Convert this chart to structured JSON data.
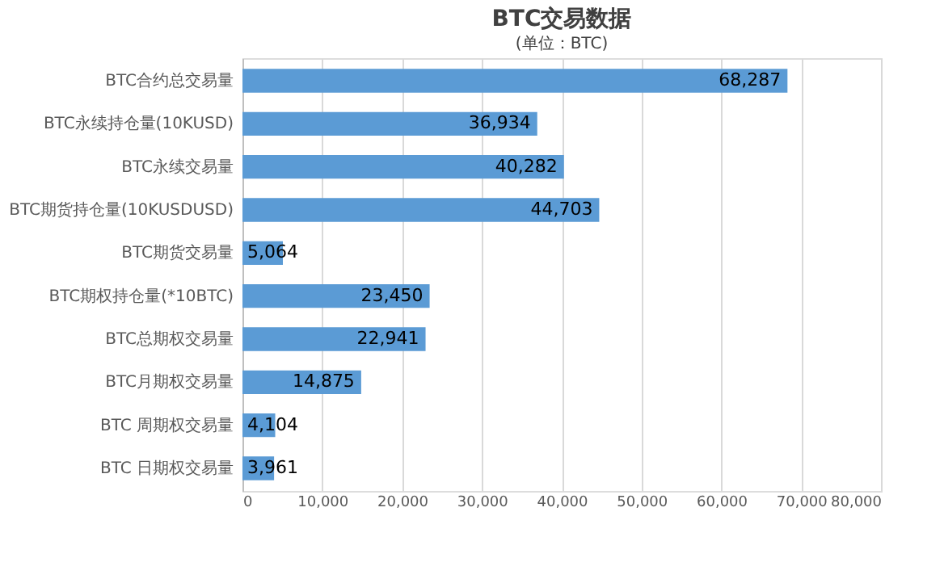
{
  "chart_data": {
    "type": "bar",
    "orientation": "horizontal",
    "title": "BTC交易数据",
    "subtitle": "(单位：BTC)",
    "categories": [
      "BTC合约总交易量",
      "BTC永续持仓量(10KUSD)",
      "BTC永续交易量",
      "BTC期货持仓量(10KUSDUSD)",
      "BTC期货交易量",
      "BTC期权持仓量(*10BTC)",
      "BTC总期权交易量",
      "BTC月期权交易量",
      "BTC  周期权交易量",
      "BTC  日期权交易量"
    ],
    "series": [
      {
        "color": "#5b9bd5",
        "values": [
          68287,
          36934,
          40282,
          44703,
          5064,
          23450,
          22941,
          14875,
          4104,
          3961
        ],
        "value_labels": [
          "68,287",
          "36,934",
          "40,282",
          "44,703",
          "5,064",
          "23,450",
          "22,941",
          "14,875",
          "4,104",
          "3,961"
        ]
      }
    ],
    "xlim": [
      0,
      80000
    ],
    "xticks": [
      0,
      {
        "value": 10000,
        "label": "10,000"
      },
      {
        "value": 20000,
        "label": "20,000"
      },
      {
        "value": 30000,
        "label": "30,000"
      },
      {
        "value": 40000,
        "label": "40,000"
      },
      {
        "value": 50000,
        "label": "50,000"
      },
      {
        "value": 60000,
        "label": "60,000"
      },
      {
        "value": 70000,
        "label": "70,000"
      },
      {
        "value": 80000,
        "label": "80,000"
      }
    ],
    "grid": "x"
  }
}
